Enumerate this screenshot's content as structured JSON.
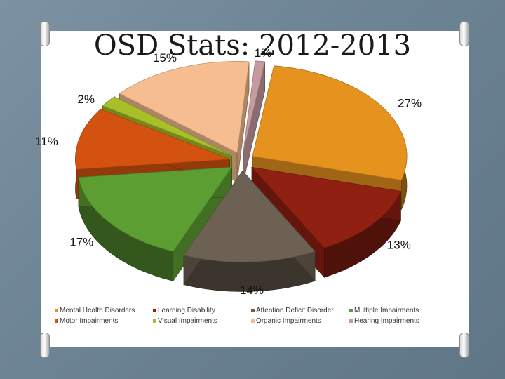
{
  "colors": {
    "mental_health": "#e5921e",
    "learning": "#8f2012",
    "attention": "#6c6153",
    "multiple": "#5d9e32",
    "motor": "#d4520f",
    "visual": "#a8bf2a",
    "organic": "#f6be90",
    "hearing": "#c79aa0"
  },
  "chart_data": {
    "type": "pie",
    "title": "OSD Stats: 2012-2013",
    "slices": [
      {
        "label": "Mental Health Disorders",
        "value": 27,
        "value_label": "27%",
        "color": "#e5921e"
      },
      {
        "label": "Learning Disability",
        "value": 13,
        "value_label": "13%",
        "color": "#8f2012"
      },
      {
        "label": "Attention Deficit Disorder",
        "value": 14,
        "value_label": "14%",
        "color": "#6c6153"
      },
      {
        "label": "Multiple Impairments",
        "value": 17,
        "value_label": "17%",
        "color": "#5d9e32"
      },
      {
        "label": "Motor Impairments",
        "value": 11,
        "value_label": "11%",
        "color": "#d4520f"
      },
      {
        "label": "Visual Impairments",
        "value": 2,
        "value_label": "2%",
        "color": "#a8bf2a"
      },
      {
        "label": "Organic Impairments",
        "value": 15,
        "value_label": "15%",
        "color": "#f6be90"
      },
      {
        "label": "Hearing Impairments",
        "value": 1,
        "value_label": "1%",
        "color": "#c79aa0"
      }
    ],
    "legend": {
      "position": "bottom",
      "rows": [
        [
          "Mental Health Disorders",
          "Learning Disability",
          "Attention Deficit Disorder",
          "Multiple Impairments"
        ],
        [
          "Motor Impairments",
          "Visual Impairments",
          "Organic Impairments",
          "Hearing Impairments"
        ]
      ]
    },
    "exploded": true,
    "three_d": true
  }
}
